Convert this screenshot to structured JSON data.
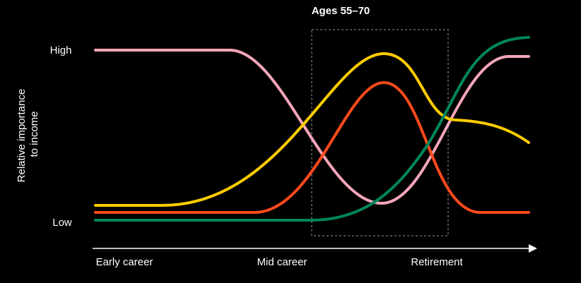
{
  "header": {
    "title": "Ages 55–70"
  },
  "y_axis": {
    "label_lines": [
      "Relative importance",
      "to income"
    ],
    "high": "High",
    "low": "Low"
  },
  "x_axis": {
    "labels": [
      "Early career",
      "Mid career",
      "Retirement"
    ]
  }
}
